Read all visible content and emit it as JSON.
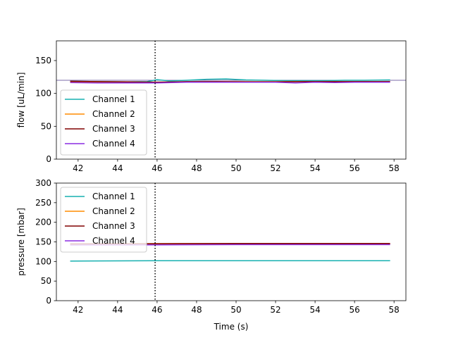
{
  "chart_data": [
    {
      "type": "line",
      "xlabel": "",
      "ylabel": "flow [uL/min]",
      "xlim": [
        40.9,
        58.6
      ],
      "ylim": [
        0,
        180
      ],
      "xticks": [
        42,
        44,
        46,
        48,
        50,
        52,
        54,
        56,
        58
      ],
      "yticks": [
        0,
        50,
        100,
        150
      ],
      "grid": false,
      "legend": "lower-left",
      "hline": {
        "y": 120,
        "color": "#7b6ba8"
      },
      "vline": {
        "x": 45.9,
        "style": "dotted",
        "color": "#000000"
      },
      "series": [
        {
          "name": "Channel 1",
          "color": "#17b0b0",
          "x": [
            41.6,
            43.0,
            44.5,
            45.5,
            46.0,
            46.6,
            47.5,
            48.5,
            49.5,
            50.5,
            51.5,
            52.5,
            53.5,
            54.5,
            55.5,
            56.5,
            57.8
          ],
          "y": [
            118.5,
            118,
            117.5,
            118,
            121,
            119,
            120,
            121.5,
            122,
            120.5,
            120,
            119.5,
            119.5,
            119.5,
            120,
            120,
            120.5
          ]
        },
        {
          "name": "Channel 2",
          "color": "#ff8c00",
          "x": [
            41.6,
            44,
            46,
            48,
            50,
            52,
            54,
            56,
            57.8
          ],
          "y": [
            117.5,
            117,
            117,
            117.5,
            118,
            118,
            118,
            118,
            118
          ]
        },
        {
          "name": "Channel 3",
          "color": "#800000",
          "x": [
            41.6,
            43,
            44.5,
            46,
            47.5,
            49,
            50.5,
            52,
            53,
            54.5,
            56,
            57.8
          ],
          "y": [
            118.5,
            118,
            117.5,
            117,
            118,
            118,
            117.5,
            117.5,
            118,
            118,
            118,
            118
          ]
        },
        {
          "name": "Channel 4",
          "color": "#8a2be2",
          "x": [
            41.6,
            43,
            44.5,
            46,
            47.5,
            49,
            50.5,
            52,
            53,
            54,
            55,
            56,
            57.8
          ],
          "y": [
            116.5,
            116,
            116,
            116,
            117,
            117,
            117,
            117,
            116,
            117,
            116.5,
            117,
            117
          ]
        }
      ]
    },
    {
      "type": "line",
      "xlabel": "Time (s)",
      "ylabel": "pressure [mbar]",
      "xlim": [
        40.9,
        58.6
      ],
      "ylim": [
        0,
        300
      ],
      "xticks": [
        42,
        44,
        46,
        48,
        50,
        52,
        54,
        56,
        58
      ],
      "yticks": [
        0,
        50,
        100,
        150,
        200,
        250,
        300
      ],
      "grid": false,
      "legend": "upper-left",
      "vline": {
        "x": 45.9,
        "style": "dotted",
        "color": "#000000"
      },
      "series": [
        {
          "name": "Channel 1",
          "color": "#17b0b0",
          "x": [
            41.6,
            46,
            50,
            54,
            57.8
          ],
          "y": [
            101,
            102,
            102,
            102,
            102
          ]
        },
        {
          "name": "Channel 2",
          "color": "#ff8c00",
          "x": [
            41.6,
            46,
            50,
            54,
            57.8
          ],
          "y": [
            144,
            144.5,
            145,
            145,
            145
          ]
        },
        {
          "name": "Channel 3",
          "color": "#800000",
          "x": [
            41.6,
            46,
            50,
            54,
            57.8
          ],
          "y": [
            145,
            145.5,
            146,
            146,
            146
          ]
        },
        {
          "name": "Channel 4",
          "color": "#8a2be2",
          "x": [
            41.6,
            46,
            50,
            54,
            57.8
          ],
          "y": [
            142,
            142.5,
            143,
            143,
            143
          ]
        }
      ]
    }
  ]
}
